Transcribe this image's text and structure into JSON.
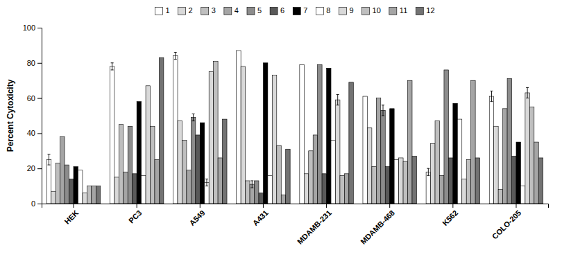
{
  "chart_data": {
    "type": "bar",
    "ylabel": "Percent Cytoxicity",
    "categories": [
      "HEK",
      "PC3",
      "A549",
      "A431",
      "MDAMB-231",
      "MDAMB-468",
      "K562",
      "COLO-205"
    ],
    "series": [
      {
        "name": "1",
        "color": "#ffffff",
        "values": [
          25,
          78,
          84,
          87,
          79,
          61,
          18,
          61
        ],
        "errors": [
          3,
          2,
          2,
          0,
          0,
          0,
          2,
          3
        ]
      },
      {
        "name": "2",
        "color": "#d9d9d9",
        "values": [
          7,
          15,
          47,
          78,
          17,
          43,
          34,
          44
        ],
        "errors": [
          0,
          0,
          0,
          0,
          0,
          0,
          0,
          0
        ]
      },
      {
        "name": "3",
        "color": "#bfbfbf",
        "values": [
          23,
          45,
          36,
          13,
          30,
          21,
          47,
          8
        ],
        "errors": [
          0,
          0,
          0,
          0,
          0,
          0,
          0,
          0
        ]
      },
      {
        "name": "4",
        "color": "#a5a5a5",
        "values": [
          38,
          18,
          19,
          11,
          39,
          60,
          16,
          54
        ],
        "errors": [
          0,
          0,
          0,
          2,
          0,
          0,
          0,
          0
        ]
      },
      {
        "name": "5",
        "color": "#8c8c8c",
        "values": [
          22,
          44,
          49,
          13,
          79,
          53,
          76,
          71
        ],
        "errors": [
          0,
          0,
          2,
          0,
          0,
          3,
          0,
          0
        ]
      },
      {
        "name": "6",
        "color": "#595959",
        "values": [
          14,
          17,
          39,
          6,
          17,
          21,
          26,
          27
        ],
        "errors": [
          0,
          0,
          0,
          0,
          0,
          0,
          0,
          0
        ]
      },
      {
        "name": "7",
        "color": "#000000",
        "values": [
          21,
          58,
          46,
          80,
          77,
          54,
          57,
          35
        ],
        "errors": [
          0,
          0,
          0,
          0,
          0,
          0,
          0,
          0
        ]
      },
      {
        "name": "8",
        "color": "#ffffff",
        "values": [
          19,
          16,
          12,
          16,
          36,
          25,
          48,
          10
        ],
        "errors": [
          0,
          0,
          2,
          0,
          0,
          0,
          0,
          0
        ]
      },
      {
        "name": "9",
        "color": "#d9d9d9",
        "values": [
          6,
          67,
          75,
          73,
          59,
          26,
          14,
          63
        ],
        "errors": [
          0,
          0,
          0,
          0,
          3,
          0,
          0,
          3
        ]
      },
      {
        "name": "10",
        "color": "#bfbfbf",
        "values": [
          10,
          44,
          81,
          33,
          16,
          24,
          25,
          55
        ],
        "errors": [
          0,
          0,
          0,
          0,
          0,
          0,
          0,
          0
        ]
      },
      {
        "name": "11",
        "color": "#a5a5a5",
        "values": [
          10,
          25,
          26,
          5,
          17,
          70,
          70,
          35
        ],
        "errors": [
          0,
          0,
          0,
          0,
          0,
          0,
          0,
          0
        ]
      },
      {
        "name": "12",
        "color": "#737373",
        "values": [
          10,
          83,
          48,
          31,
          69,
          27,
          26,
          26
        ],
        "errors": [
          0,
          0,
          0,
          0,
          0,
          0,
          0,
          0
        ]
      }
    ],
    "ylim": [
      0,
      100
    ],
    "yticks": [
      0,
      20,
      40,
      60,
      80,
      100
    ]
  }
}
